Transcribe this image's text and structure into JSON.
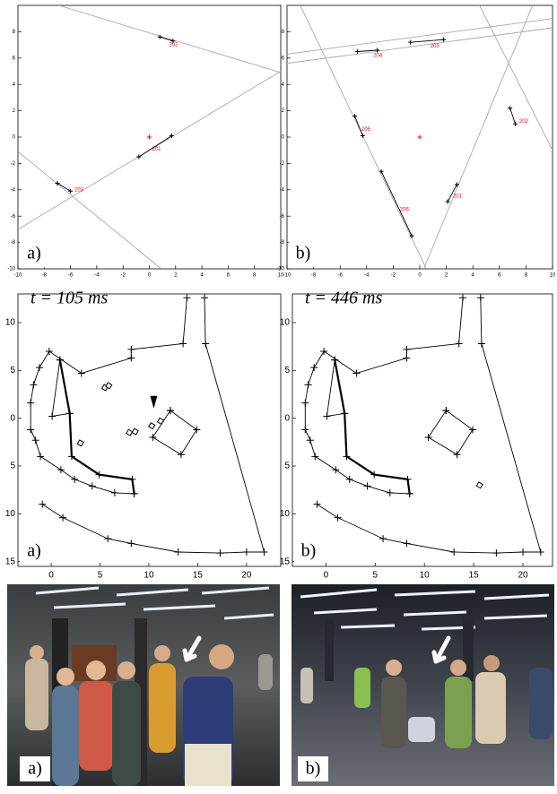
{
  "chart_data": [
    {
      "type": "line",
      "label": "a)",
      "xlim": [
        -10,
        10
      ],
      "ylim": [
        -10,
        10
      ],
      "xticks": [
        -10,
        -8,
        -6,
        -4,
        -2,
        0,
        2,
        4,
        6,
        8,
        10
      ],
      "yticks": [
        -10,
        -8,
        -6,
        -4,
        -2,
        0,
        2,
        4,
        6,
        8
      ],
      "series": [
        {
          "color": "#a8a8a8",
          "x": [
            -6.9,
            10
          ],
          "y": [
            10,
            4.9
          ]
        },
        {
          "color": "#a8a8a8",
          "x": [
            -10,
            10
          ],
          "y": [
            -7.0,
            5.0
          ]
        },
        {
          "color": "#a8a8a8",
          "x": [
            -10,
            0.9
          ],
          "y": [
            -1.1,
            -10
          ]
        },
        {
          "color": "#000000",
          "x": [
            0.8,
            1.8
          ],
          "y": [
            7.6,
            7.3
          ],
          "marker": "+"
        },
        {
          "color": "#000000",
          "x": [
            -0.8,
            1.7
          ],
          "y": [
            -1.5,
            0.1
          ],
          "marker": "+"
        },
        {
          "color": "#000000",
          "x": [
            -7.0,
            -6.0
          ],
          "y": [
            -3.5,
            -4.1
          ],
          "marker": "+"
        },
        {
          "color": "#ff0000",
          "x": [
            0
          ],
          "y": [
            0
          ],
          "line": false,
          "marker": "+"
        }
      ],
      "annotations": [
        {
          "text": "202",
          "x": 1.5,
          "y": 7.0,
          "color": "#ff0000"
        },
        {
          "text": "201",
          "x": 0.2,
          "y": -0.9,
          "color": "#ff0000"
        },
        {
          "text": "203",
          "x": -5.7,
          "y": -4.0,
          "color": "#ff0000"
        }
      ]
    },
    {
      "type": "line",
      "label": "b)",
      "xlim": [
        -10,
        10
      ],
      "ylim": [
        -10,
        10
      ],
      "xticks": [
        -10,
        -8,
        -6,
        -4,
        -2,
        0,
        2,
        4,
        6,
        8,
        10
      ],
      "yticks": [
        -10,
        -8,
        -6,
        -4,
        -2,
        0,
        2,
        4,
        6,
        8
      ],
      "series": [
        {
          "color": "#a8a8a8",
          "x": [
            -10,
            10
          ],
          "y": [
            5.6,
            8.3
          ]
        },
        {
          "color": "#a8a8a8",
          "x": [
            -10,
            10
          ],
          "y": [
            6.3,
            9.0
          ]
        },
        {
          "color": "#a8a8a8",
          "x": [
            -9.0,
            0.5
          ],
          "y": [
            10,
            -10
          ]
        },
        {
          "color": "#a8a8a8",
          "x": [
            0.3,
            8.5
          ],
          "y": [
            -10,
            10
          ]
        },
        {
          "color": "#a8a8a8",
          "x": [
            4.5,
            10
          ],
          "y": [
            10,
            -1.0
          ]
        },
        {
          "color": "#000000",
          "x": [
            -4.7,
            -3.2
          ],
          "y": [
            6.5,
            6.6
          ],
          "marker": "+"
        },
        {
          "color": "#000000",
          "x": [
            -0.7,
            1.8
          ],
          "y": [
            7.2,
            7.4
          ],
          "marker": "+"
        },
        {
          "color": "#000000",
          "x": [
            -4.9,
            -4.3
          ],
          "y": [
            1.6,
            0.1
          ],
          "marker": "+"
        },
        {
          "color": "#000000",
          "x": [
            6.8,
            7.2
          ],
          "y": [
            2.2,
            1.0
          ],
          "marker": "+"
        },
        {
          "color": "#000000",
          "x": [
            -2.9,
            -0.6
          ],
          "y": [
            -2.6,
            -7.5
          ],
          "marker": "+"
        },
        {
          "color": "#000000",
          "x": [
            2.1,
            2.8
          ],
          "y": [
            -4.9,
            -3.6
          ],
          "marker": "+"
        },
        {
          "color": "#ff0000",
          "x": [
            0
          ],
          "y": [
            0
          ],
          "line": false,
          "marker": "+"
        }
      ],
      "annotations": [
        {
          "text": "203",
          "x": 0.8,
          "y": 6.9,
          "color": "#ff0000"
        },
        {
          "text": "204",
          "x": -3.5,
          "y": 6.2,
          "color": "#ff0000"
        },
        {
          "text": "205",
          "x": -4.4,
          "y": 0.6,
          "color": "#ff0000"
        },
        {
          "text": "202",
          "x": 7.5,
          "y": 1.2,
          "color": "#ff0000"
        },
        {
          "text": "201",
          "x": 2.5,
          "y": -4.5,
          "color": "#ff0000"
        },
        {
          "text": "206",
          "x": -1.5,
          "y": -5.5,
          "color": "#ff0000"
        }
      ]
    },
    {
      "type": "line",
      "label": "a)",
      "title": "t = 105 ms",
      "xlim": [
        -3.4,
        23.5
      ],
      "ylim": [
        -15.5,
        13
      ],
      "xticks": [
        0,
        5,
        10,
        15,
        20
      ],
      "yticks": [
        10,
        5,
        0,
        {
          "value": -5,
          "label": "5"
        },
        {
          "value": -10,
          "label": "10"
        },
        {
          "value": -15,
          "label": "15"
        }
      ],
      "series": [
        {
          "color": "#000000",
          "marker": "+",
          "x": [
            -0.9,
            1.2,
            5.8,
            8.2,
            13.0,
            17.3,
            20.0,
            21.8,
            15.8,
            15.7
          ],
          "y": [
            -9.0,
            -10.4,
            -12.6,
            -13.1,
            -14.0,
            -14.1,
            -14.0,
            -14.0,
            7.8,
            12.6
          ]
        },
        {
          "color": "#000000",
          "marker": "+",
          "x": [
            13.9,
            13.5,
            8.2,
            8.2,
            3.1,
            -0.2,
            -1.2,
            -1.8,
            -2.1,
            -2.1,
            -1.6,
            -1.1,
            1.0,
            2.4,
            4.2,
            6.5,
            8.5
          ],
          "y": [
            12.6,
            7.8,
            7.2,
            6.3,
            4.7,
            7.0,
            5.3,
            3.5,
            1.6,
            -1.2,
            -2.3,
            -4.0,
            -5.4,
            -6.4,
            -7.1,
            -7.8,
            -7.9
          ]
        },
        {
          "color": "#000000",
          "marker": "+",
          "width": 2.2,
          "x": [
            0.9,
            1.9,
            2.1,
            4.9,
            8.3,
            8.5
          ],
          "y": [
            6.1,
            0.5,
            -4.0,
            -5.9,
            -6.4,
            -7.9
          ]
        },
        {
          "color": "#000000",
          "marker": "+",
          "x": [
            0.9,
            0.1,
            1.9
          ],
          "y": [
            6.1,
            0.2,
            0.5
          ]
        },
        {
          "color": "#000000",
          "marker": "+",
          "x": [
            12.2,
            14.9,
            13.3,
            10.4,
            12.2
          ],
          "y": [
            0.8,
            -1.2,
            -3.8,
            -2.0,
            0.8
          ]
        },
        {
          "color": "#000000",
          "line": false,
          "marker": "square",
          "x": [
            3.0,
            5.5,
            5.9,
            8.0,
            8.6,
            10.3,
            11.2
          ],
          "y": [
            -2.6,
            3.2,
            3.4,
            -1.5,
            -1.4,
            -0.8,
            -0.3
          ]
        },
        {
          "color": "#000000",
          "line": false,
          "marker": "triangle",
          "x": [
            10.5
          ],
          "y": [
            1.4
          ]
        }
      ]
    },
    {
      "type": "line",
      "label": "b)",
      "title": "t = 446 ms",
      "xlim": [
        -3.4,
        23.0
      ],
      "ylim": [
        -15.5,
        13
      ],
      "xticks": [
        0,
        5,
        10,
        15,
        20
      ],
      "yticks": [
        10,
        5,
        0,
        {
          "value": -5,
          "label": "5"
        },
        {
          "value": -10,
          "label": "10"
        },
        {
          "value": -15,
          "label": "15"
        }
      ],
      "series": [
        {
          "color": "#000000",
          "marker": "+",
          "x": [
            -0.9,
            1.2,
            5.8,
            8.2,
            13.0,
            17.3,
            20.0,
            21.8,
            15.8,
            15.7
          ],
          "y": [
            -9.0,
            -10.4,
            -12.6,
            -13.1,
            -14.0,
            -14.1,
            -14.0,
            -14.0,
            7.8,
            12.6
          ]
        },
        {
          "color": "#000000",
          "marker": "+",
          "x": [
            13.9,
            13.5,
            8.2,
            8.2,
            3.1,
            -0.2,
            -1.2,
            -1.8,
            -2.1,
            -2.1,
            -1.6,
            -1.1,
            1.0,
            2.4,
            4.2,
            6.5,
            8.5
          ],
          "y": [
            12.6,
            7.8,
            7.2,
            6.3,
            4.7,
            7.0,
            5.3,
            3.5,
            1.6,
            -1.2,
            -2.3,
            -4.0,
            -5.4,
            -6.4,
            -7.1,
            -7.8,
            -7.9
          ]
        },
        {
          "color": "#000000",
          "marker": "+",
          "width": 2.2,
          "x": [
            0.9,
            1.9,
            2.1,
            4.9,
            8.3,
            8.5
          ],
          "y": [
            6.1,
            0.5,
            -4.0,
            -5.9,
            -6.4,
            -7.9
          ]
        },
        {
          "color": "#000000",
          "marker": "+",
          "x": [
            0.9,
            0.1,
            1.9
          ],
          "y": [
            6.1,
            0.2,
            0.5
          ]
        },
        {
          "color": "#000000",
          "marker": "+",
          "x": [
            12.2,
            14.9,
            13.3,
            10.4,
            12.2
          ],
          "y": [
            0.8,
            -1.2,
            -3.8,
            -2.0,
            0.8
          ]
        },
        {
          "color": "#000000",
          "line": false,
          "marker": "square",
          "x": [
            15.6
          ],
          "y": [
            -7.0
          ]
        }
      ]
    }
  ],
  "photos": [
    {
      "label": "a)"
    },
    {
      "label": "b)"
    }
  ]
}
